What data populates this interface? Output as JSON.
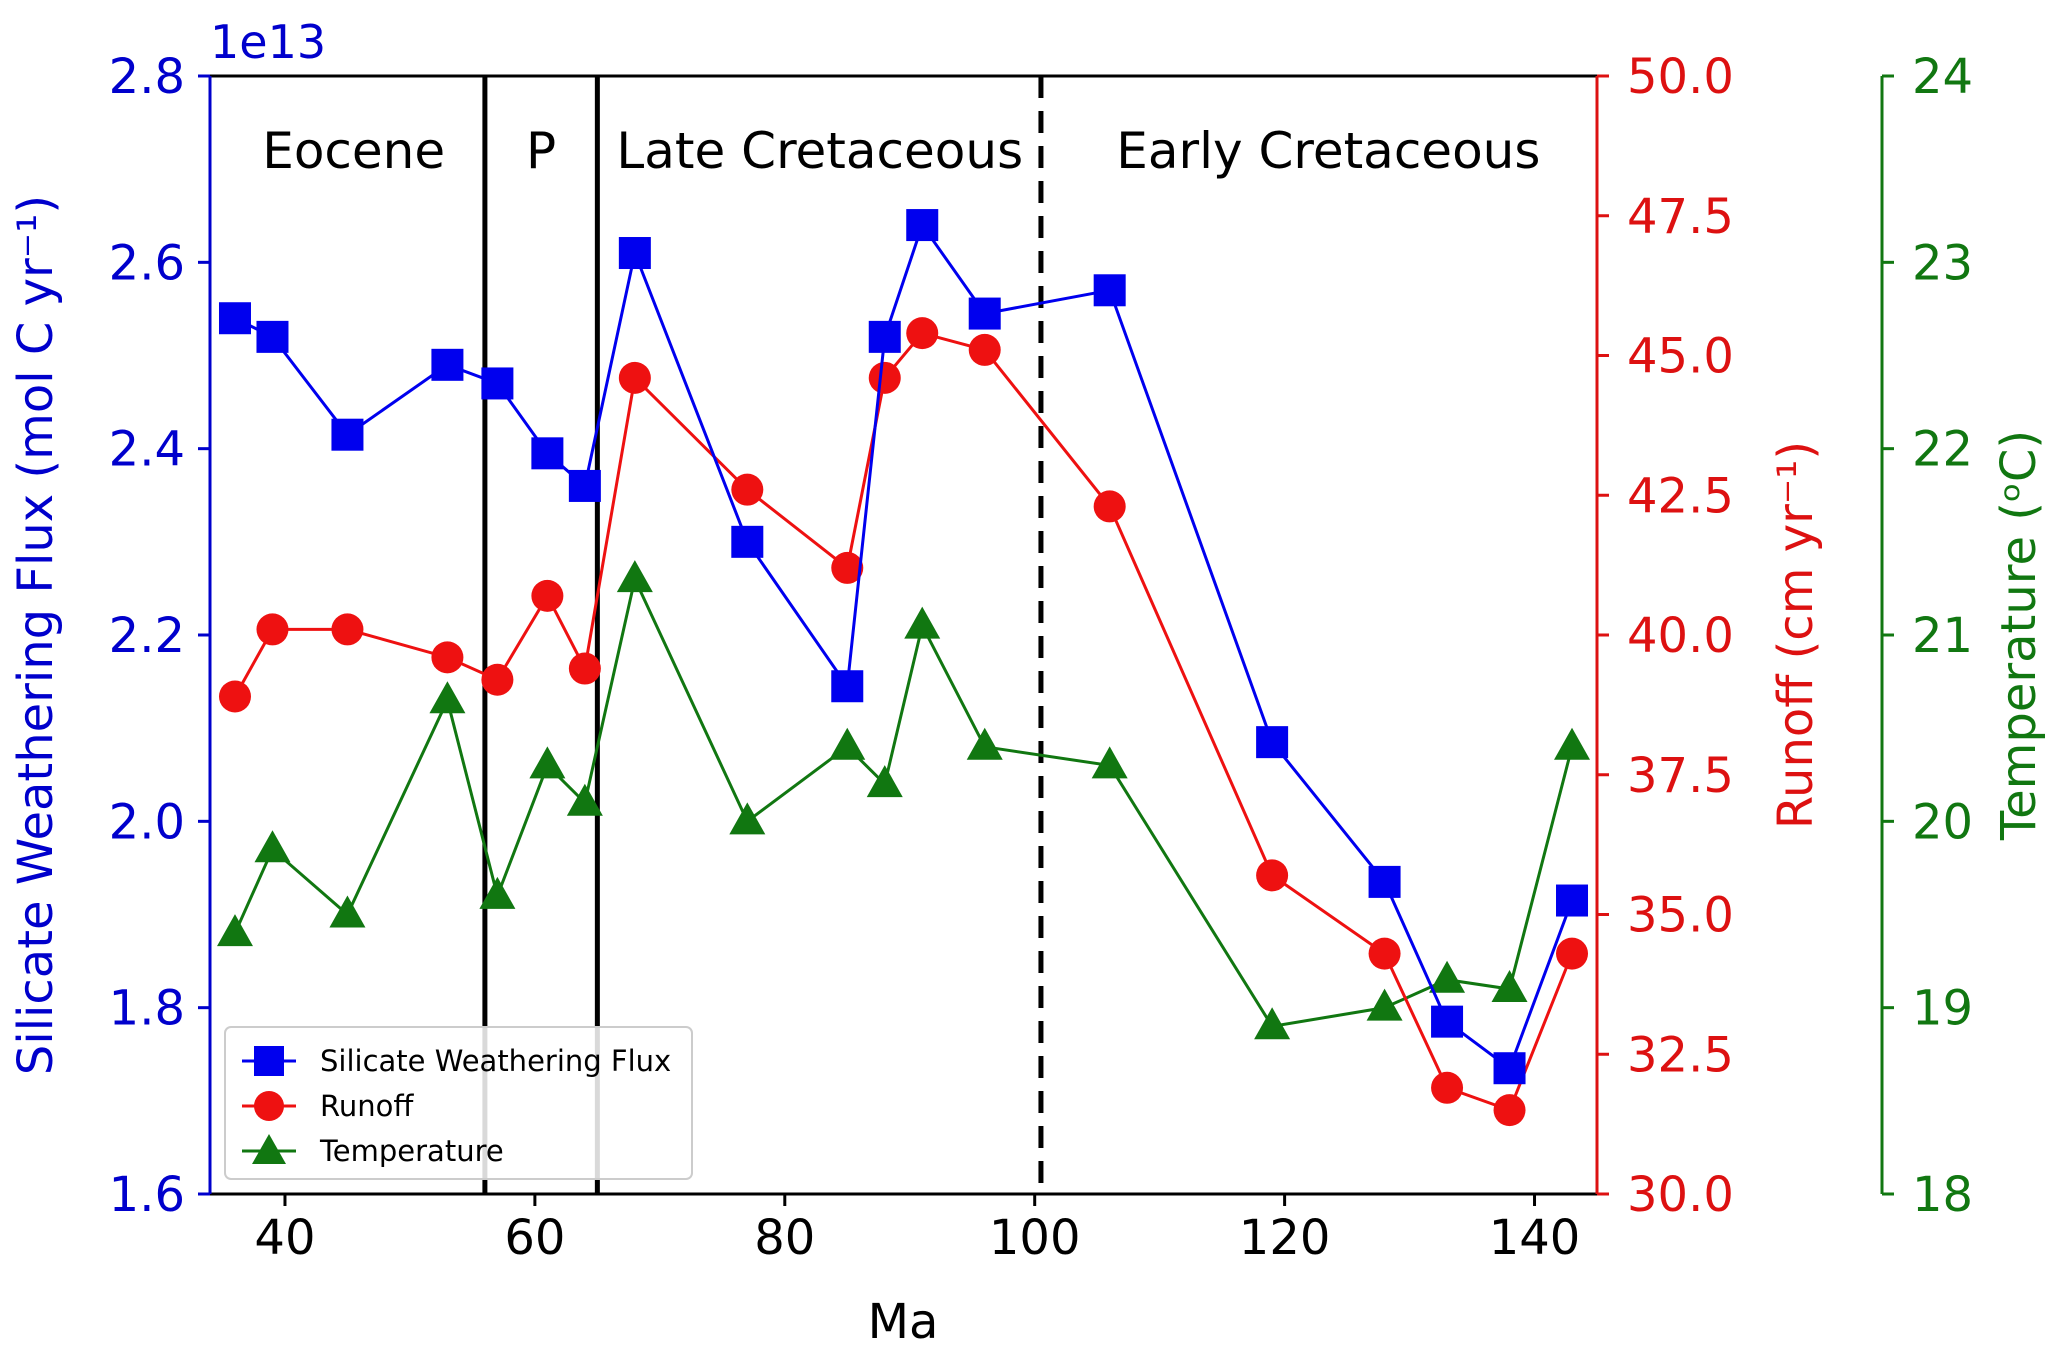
{
  "chart_data": {
    "type": "line",
    "x": [
      36,
      39,
      45,
      53,
      57,
      61,
      64,
      68,
      77,
      85,
      88,
      91,
      96,
      106,
      119,
      128,
      133,
      138,
      143
    ],
    "xlabel": "Ma",
    "xlim": [
      34,
      145
    ],
    "xticks": [
      40,
      60,
      80,
      100,
      120,
      140
    ],
    "axes": {
      "left": {
        "label": "Silicate Weathering Flux (mol C yr⁻¹)",
        "exponent": "1e13",
        "ylim": [
          1.6,
          2.8
        ],
        "ticks": [
          "1.6",
          "1.8",
          "2.0",
          "2.2",
          "2.4",
          "2.6",
          "2.8"
        ],
        "color": "#0000cc"
      },
      "right1": {
        "label": "Runoff (cm yr⁻¹)",
        "ylim": [
          30.0,
          50.0
        ],
        "ticks": [
          "30.0",
          "32.5",
          "35.0",
          "37.5",
          "40.0",
          "42.5",
          "45.0",
          "47.5",
          "50.0"
        ],
        "color": "#dd1111"
      },
      "right2": {
        "label": "Temperature (ᵒC)",
        "ylim": [
          18,
          24
        ],
        "ticks": [
          "18",
          "19",
          "20",
          "21",
          "22",
          "23",
          "24"
        ],
        "color": "#117711"
      }
    },
    "series": [
      {
        "name": "Silicate Weathering Flux",
        "axis": "left",
        "color": "#0000ee",
        "marker": "square",
        "values": [
          2.54,
          2.52,
          2.415,
          2.49,
          2.47,
          2.395,
          2.36,
          2.61,
          2.3,
          2.145,
          2.52,
          2.64,
          2.545,
          2.57,
          2.085,
          1.935,
          1.785,
          1.735,
          1.915
        ]
      },
      {
        "name": "Runoff",
        "axis": "right1",
        "color": "#ee1111",
        "marker": "circle",
        "values": [
          38.9,
          40.1,
          40.1,
          39.6,
          39.2,
          40.7,
          39.4,
          44.6,
          42.6,
          41.2,
          44.6,
          45.4,
          45.1,
          42.3,
          35.7,
          34.3,
          31.9,
          31.5,
          34.3
        ]
      },
      {
        "name": "Temperature",
        "axis": "right2",
        "color": "#117711",
        "marker": "triangle",
        "values": [
          19.4,
          19.85,
          19.5,
          20.65,
          19.6,
          20.3,
          20.1,
          21.3,
          20.0,
          20.4,
          20.2,
          21.05,
          20.4,
          20.3,
          18.9,
          19.0,
          19.15,
          19.1,
          20.4
        ]
      }
    ],
    "boundaries": [
      {
        "x": 56,
        "style": "solid"
      },
      {
        "x": 65,
        "style": "solid"
      },
      {
        "x": 100.5,
        "style": "dashed"
      }
    ],
    "periods": [
      {
        "label": "Eocene",
        "x_center": 45.5
      },
      {
        "label": "P",
        "x_center": 60.5
      },
      {
        "label": "Late Cretaceous",
        "x_center": 82.8
      },
      {
        "label": "Early Cretaceous",
        "x_center": 123.5
      }
    ],
    "legend": {
      "position": "lower-left",
      "entries": [
        "Silicate Weathering Flux",
        "Runoff",
        "Temperature"
      ]
    }
  }
}
